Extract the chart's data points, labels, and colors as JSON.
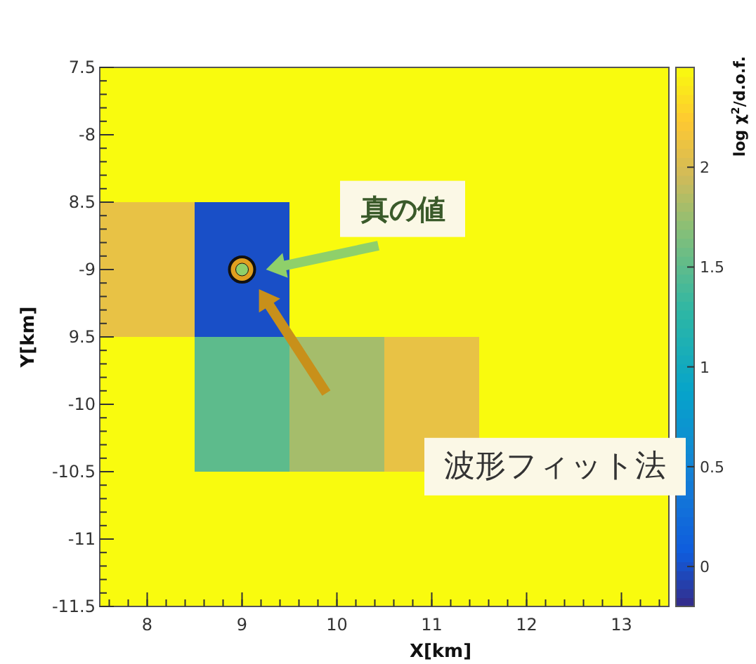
{
  "chart_data": {
    "type": "heatmap",
    "xlabel": "X[km]",
    "ylabel": "Y[km]",
    "clabel": "log χ$^{2}$/d.o.f.",
    "x": [
      8,
      9,
      10,
      11,
      12,
      13
    ],
    "y": [
      -8,
      -9,
      -10,
      -11
    ],
    "cells": [
      [
        2.5,
        2.5,
        2.5,
        2.5,
        2.5,
        2.5
      ],
      [
        2.1,
        0,
        2.5,
        2.5,
        2.5,
        2.5
      ],
      [
        2.5,
        1.5,
        1.8,
        2.1,
        2.5,
        2.5
      ],
      [
        2.5,
        2.5,
        2.5,
        2.5,
        2.5,
        2.5
      ]
    ],
    "xlim": [
      7.5,
      13.5
    ],
    "ylim": [
      -11.5,
      -7.5
    ],
    "xticks": [
      8,
      9,
      10,
      11,
      12,
      13
    ],
    "yticks": [
      {
        "value": -7.5,
        "label": "7.5"
      },
      -8,
      {
        "value": -8.5,
        "label": "8.5"
      },
      -9,
      {
        "value": -9.5,
        "label": "9.5"
      },
      -10,
      -10.5,
      -11,
      -11.5
    ],
    "clim": [
      -0.2,
      2.5
    ],
    "cticks": [
      0,
      0.5,
      1,
      1.5,
      2
    ],
    "series": [
      {
        "type": "scatter",
        "x": [
          9
        ],
        "values": [
          -9
        ],
        "color": "#e0a020",
        "marker": "circle"
      },
      {
        "type": "scatter",
        "x": [
          9
        ],
        "values": [
          -9
        ],
        "color": "#8fd06a",
        "marker": "circle"
      }
    ],
    "annotations": [
      "真の値",
      "波形フィット法"
    ]
  }
}
